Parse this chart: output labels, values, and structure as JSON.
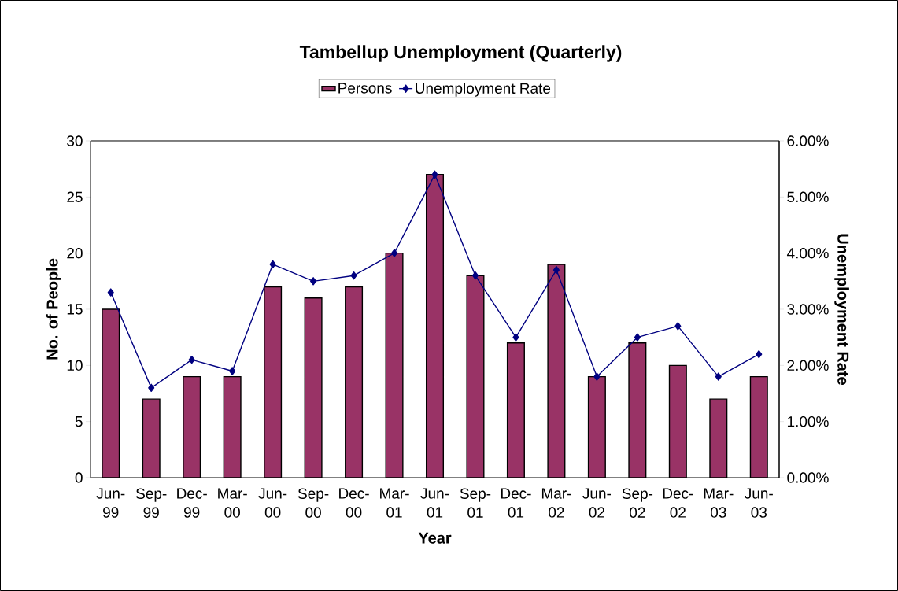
{
  "chart_data": {
    "type": "bar",
    "title": "Tambellup Unemployment (Quarterly)",
    "xlabel": "Year",
    "ylabel": "No. of People",
    "y2label": "Unemployment Rate",
    "categories": [
      "Jun-99",
      "Sep-99",
      "Dec-99",
      "Mar-00",
      "Jun-00",
      "Sep-00",
      "Dec-00",
      "Mar-01",
      "Jun-01",
      "Sep-01",
      "Dec-01",
      "Mar-02",
      "Jun-02",
      "Sep-02",
      "Dec-02",
      "Mar-03",
      "Jun-03"
    ],
    "series": [
      {
        "name": "Persons",
        "color": "#993366",
        "values": [
          15,
          7,
          9,
          9,
          17,
          16,
          17,
          20,
          27,
          18,
          12,
          19,
          9,
          12,
          10,
          7,
          9
        ]
      },
      {
        "name": "Unemployment Rate",
        "type": "line",
        "axis": "y2",
        "color": "#000080",
        "values": [
          3.3,
          1.6,
          2.1,
          1.9,
          3.8,
          3.5,
          3.6,
          4.0,
          5.4,
          3.6,
          2.5,
          3.7,
          1.8,
          2.5,
          2.7,
          1.8,
          2.2
        ]
      }
    ],
    "ylim": [
      0,
      30
    ],
    "yticks": [
      0,
      5,
      10,
      15,
      20,
      25,
      30
    ],
    "y2lim": [
      0,
      6
    ],
    "y2ticks": [
      {
        "value": 0,
        "label": "0.00%"
      },
      {
        "value": 1,
        "label": "1.00%"
      },
      {
        "value": 2,
        "label": "2.00%"
      },
      {
        "value": 3,
        "label": "3.00%"
      },
      {
        "value": 4,
        "label": "4.00%"
      },
      {
        "value": 5,
        "label": "5.00%"
      },
      {
        "value": 6,
        "label": "6.00%"
      }
    ],
    "legend": "top",
    "marker": "diamond"
  }
}
